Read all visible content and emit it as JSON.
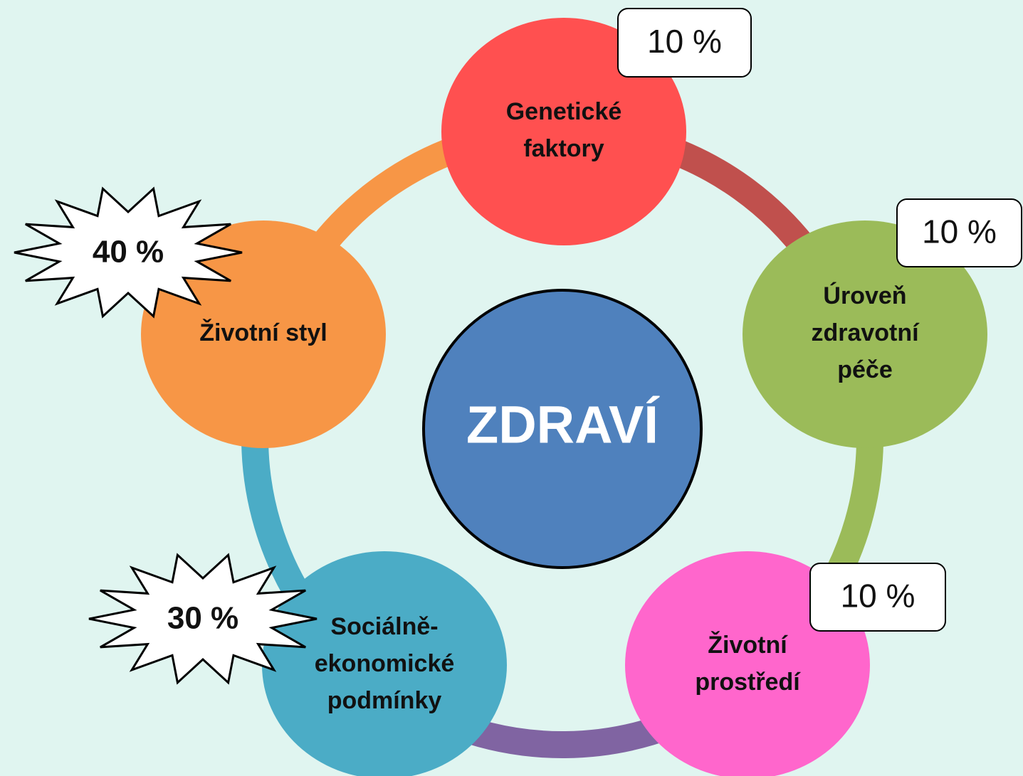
{
  "center": "ZDRAVÍ",
  "nodes": [
    {
      "lines": [
        "Genetické",
        "faktory"
      ],
      "share": "10 %"
    },
    {
      "lines": [
        "Úroveň",
        "zdravotní",
        "péče"
      ],
      "share": "10 %"
    },
    {
      "lines": [
        "Životní",
        "prostředí"
      ],
      "share": "10 %"
    },
    {
      "lines": [
        "Sociálně-",
        "ekonomické",
        "podmínky"
      ],
      "share": "30 %"
    },
    {
      "lines": [
        "Životní styl"
      ],
      "share": "40 %"
    }
  ]
}
